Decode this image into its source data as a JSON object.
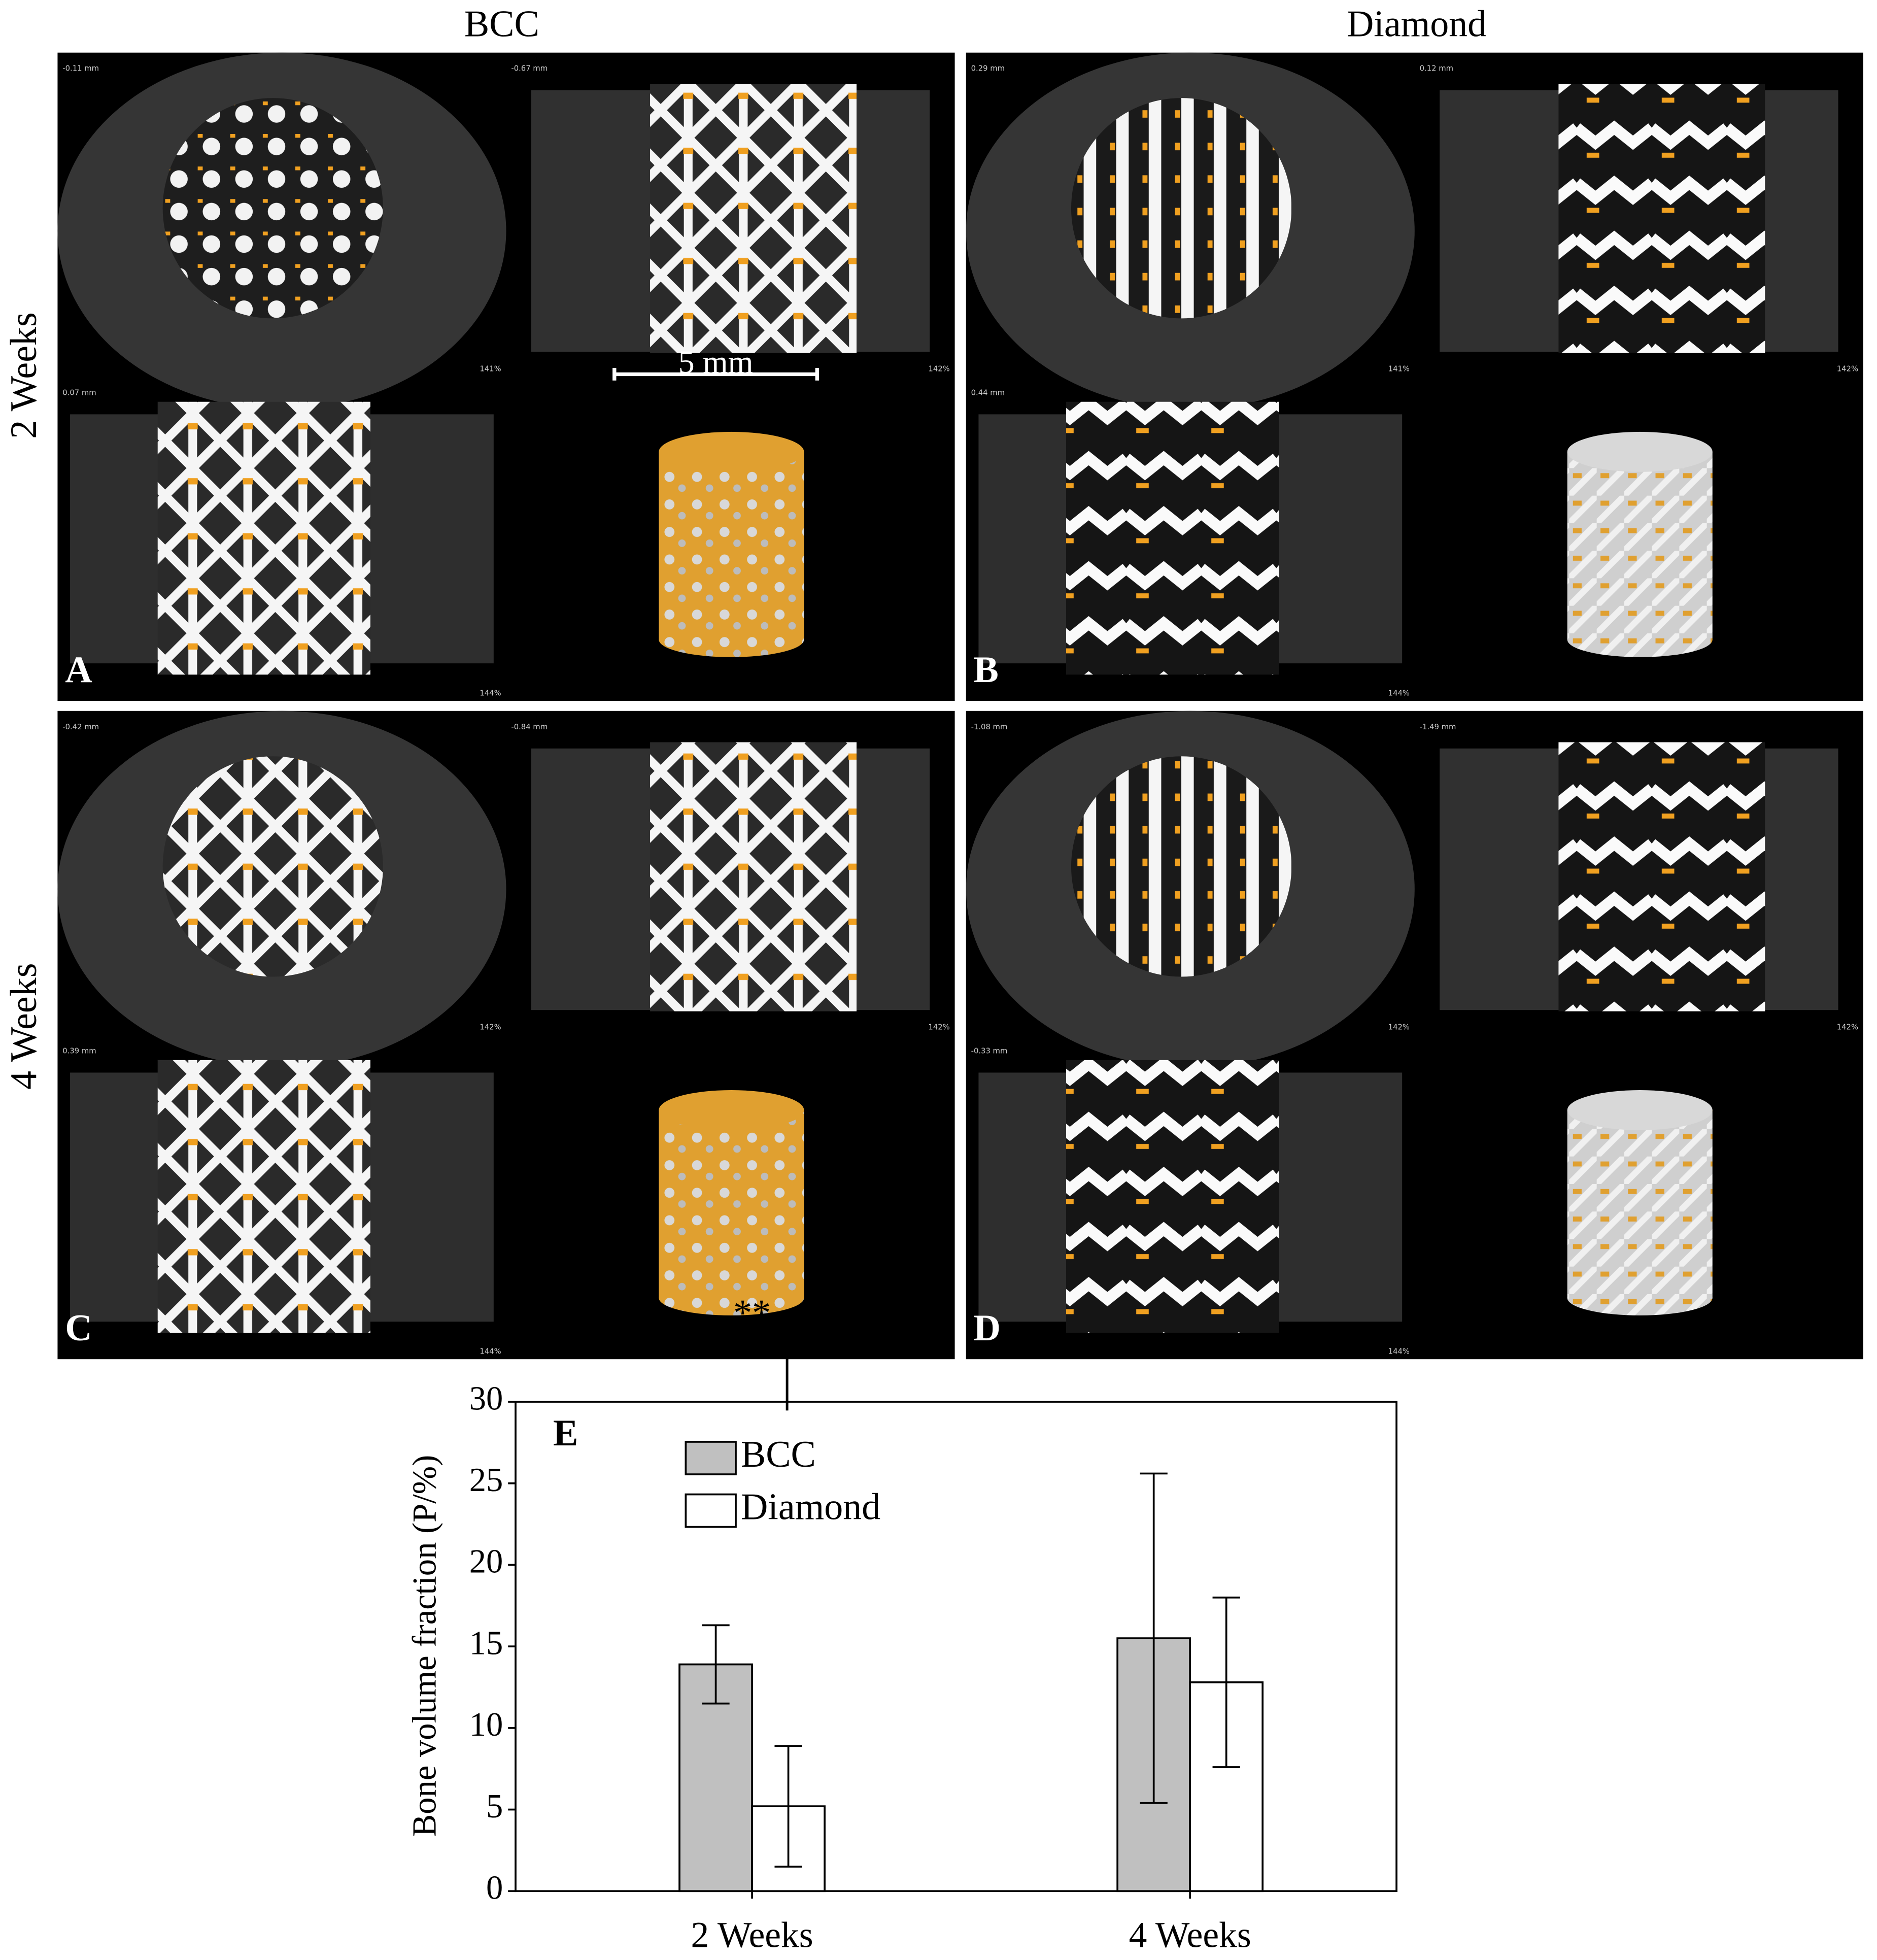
{
  "column_labels": [
    "BCC",
    "Diamond"
  ],
  "row_labels": [
    "2 Weeks",
    "4 Weeks"
  ],
  "scale_bar": "5 mm",
  "panels": [
    {
      "letter": "A",
      "readouts": [
        "-0.11 mm",
        "-0.67 mm",
        "0.07 mm"
      ],
      "zooms": [
        "141%",
        "142%",
        "144%"
      ]
    },
    {
      "letter": "B",
      "readouts": [
        "0.29 mm",
        "0.12 mm",
        "0.44 mm"
      ],
      "zooms": [
        "141%",
        "142%",
        "144%"
      ]
    },
    {
      "letter": "C",
      "readouts": [
        "-0.42 mm",
        "-0.84 mm",
        "0.39 mm"
      ],
      "zooms": [
        "142%",
        "142%",
        "144%"
      ]
    },
    {
      "letter": "D",
      "readouts": [
        "-1.08 mm",
        "-1.49 mm",
        "-0.33 mm"
      ],
      "zooms": [
        "142%",
        "142%",
        "144%"
      ]
    }
  ],
  "chart_data": {
    "type": "bar",
    "panel_label": "E",
    "y_label": "Bone volume fraction (P/%)",
    "categories": [
      "2 Weeks",
      "4 Weeks"
    ],
    "series": [
      {
        "name": "BCC",
        "color": "#c0c0c0",
        "values": [
          13.9,
          15.5
        ],
        "errors": [
          2.4,
          10.1
        ]
      },
      {
        "name": "Diamond",
        "color": "#ffffff",
        "values": [
          5.2,
          12.8
        ],
        "errors": [
          3.7,
          5.2
        ]
      }
    ],
    "annotation": "**",
    "ylim": [
      0,
      30
    ],
    "yticks": [
      0,
      5,
      10,
      15,
      20,
      25,
      30
    ]
  }
}
